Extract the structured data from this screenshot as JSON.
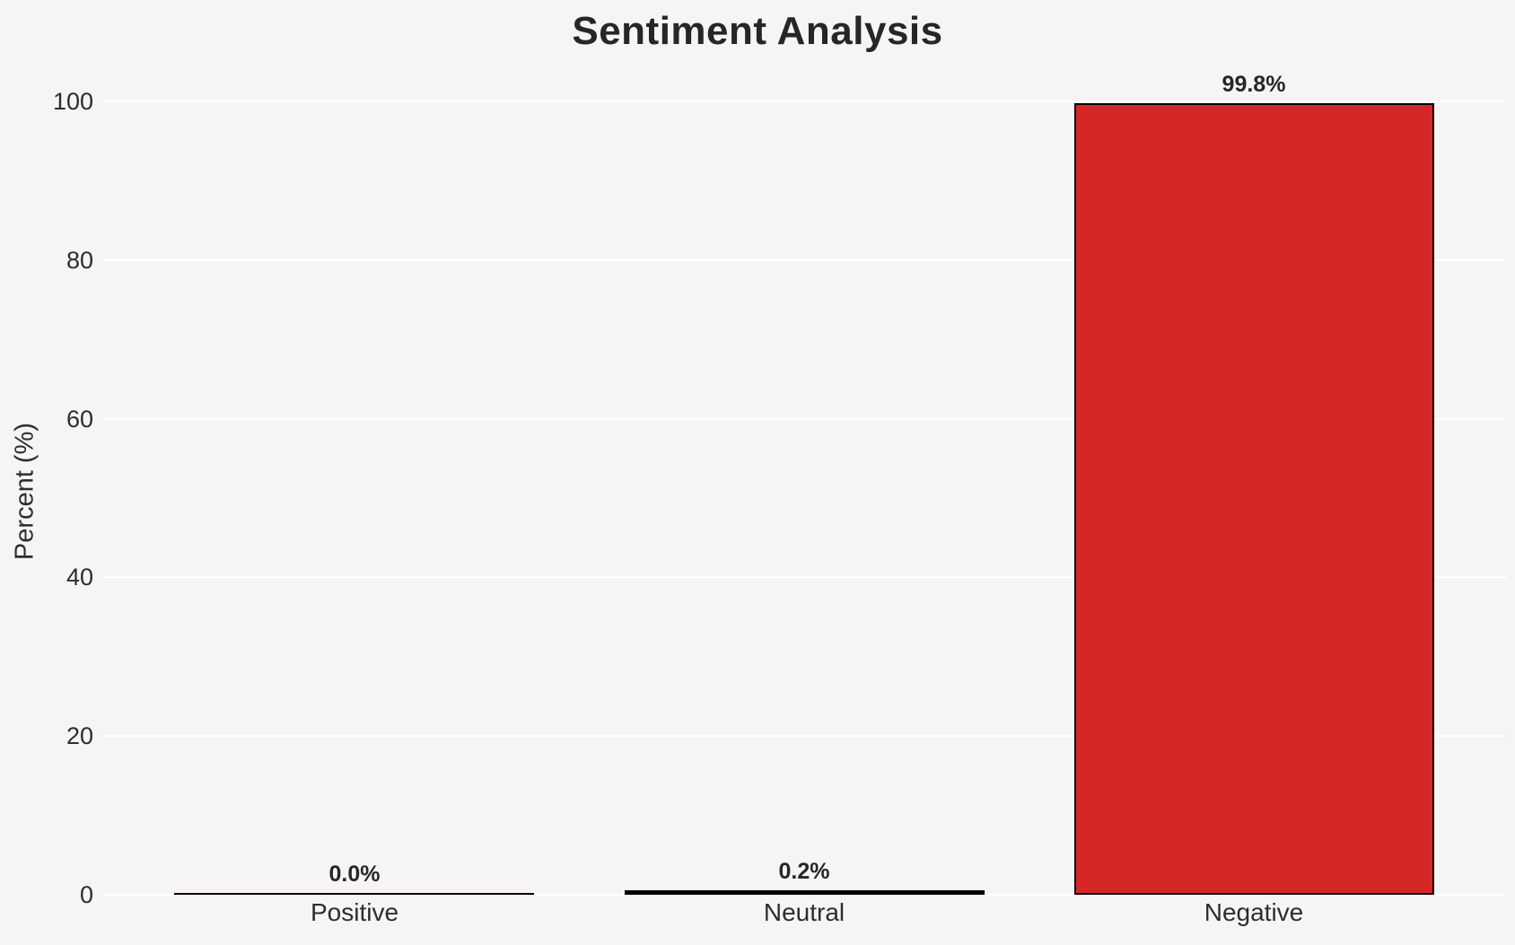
{
  "chart_data": {
    "type": "bar",
    "title": "Sentiment Analysis",
    "xlabel": "",
    "ylabel": "Percent (%)",
    "categories": [
      "Positive",
      "Neutral",
      "Negative"
    ],
    "values": [
      0.0,
      0.2,
      99.8
    ],
    "bar_labels": [
      "0.0%",
      "0.2%",
      "99.8%"
    ],
    "ylim": [
      0,
      100
    ],
    "yticks": [
      "0",
      "20",
      "40",
      "60",
      "80",
      "100"
    ],
    "ytick_values": [
      0,
      20,
      40,
      60,
      80,
      100
    ],
    "grid": "horizontal",
    "legend": "none",
    "colors": {
      "background": "#f6f5f4",
      "gridline": "#ffffff",
      "bar_fill": "#d62728",
      "bar_edge": "#000000",
      "text": "#2d2d2d",
      "title_text": "#262626"
    }
  }
}
